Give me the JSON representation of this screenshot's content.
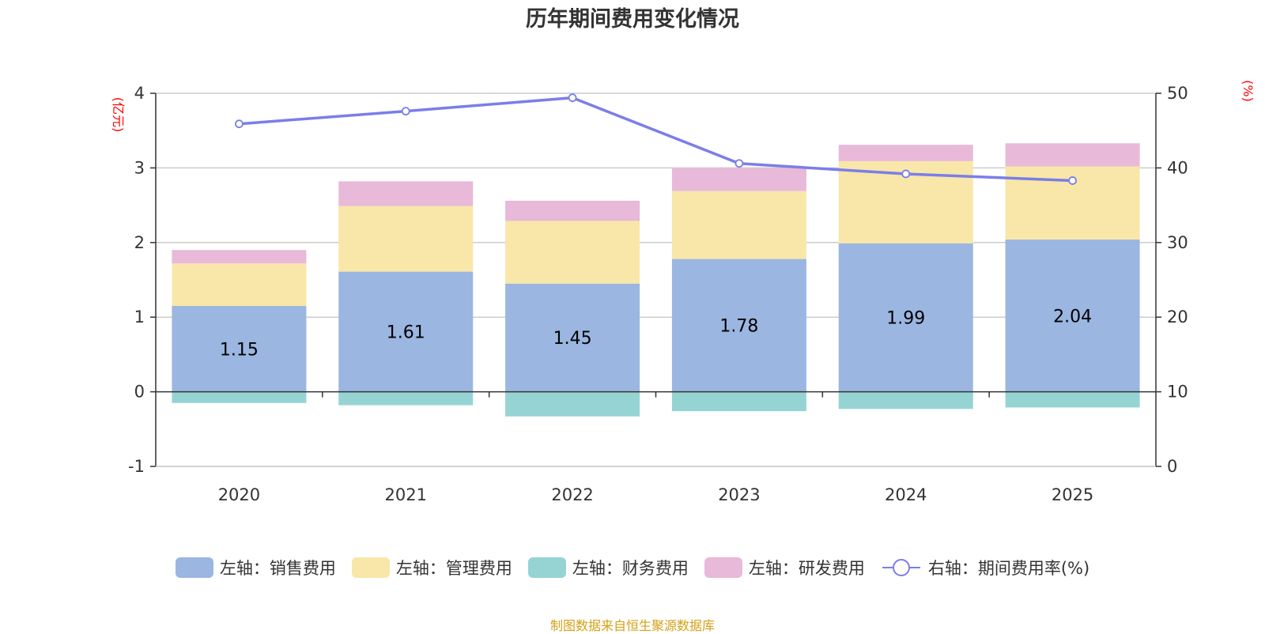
{
  "chart_data": {
    "type": "bar",
    "title": "历年期间费用变化情况",
    "categories": [
      "2020",
      "2021",
      "2022",
      "2023",
      "2024",
      "2025"
    ],
    "series": [
      {
        "name": "左轴：销售费用",
        "axis": "left",
        "stack": "positive",
        "color": "#9bb6e0",
        "values": [
          1.15,
          1.61,
          1.45,
          1.78,
          1.99,
          2.04
        ],
        "show_labels": true
      },
      {
        "name": "左轴：管理费用",
        "axis": "left",
        "stack": "positive",
        "color": "#f8e7a8",
        "values": [
          0.57,
          0.88,
          0.84,
          0.91,
          1.1,
          0.98
        ],
        "show_labels": false
      },
      {
        "name": "左轴：财务费用",
        "axis": "left",
        "stack": "negative",
        "color": "#96d4d4",
        "values": [
          -0.15,
          -0.18,
          -0.33,
          -0.26,
          -0.23,
          -0.21
        ],
        "show_labels": false
      },
      {
        "name": "左轴：研发费用",
        "axis": "left",
        "stack": "positive",
        "color": "#e8b9d9",
        "values": [
          0.18,
          0.33,
          0.27,
          0.31,
          0.22,
          0.31
        ],
        "show_labels": false
      },
      {
        "name": "右轴：期间费用率(%)",
        "axis": "right",
        "type": "line",
        "color": "#7b7ee8",
        "values": [
          45.9,
          47.6,
          49.4,
          40.6,
          39.2,
          38.3
        ]
      }
    ],
    "y_left": {
      "label": "(亿元)",
      "range": [
        -1,
        4
      ],
      "ticks": [
        "4",
        "3",
        "2",
        "1",
        "0",
        "-1"
      ],
      "tick_values": [
        4,
        3,
        2,
        1,
        0,
        -1
      ]
    },
    "y_right": {
      "label": "(%)",
      "range": [
        0,
        50
      ],
      "ticks": [
        "50",
        "40",
        "30",
        "20",
        "10",
        "0"
      ],
      "tick_values": [
        50,
        40,
        30,
        20,
        10,
        0
      ]
    },
    "grid": true,
    "legend_position": "bottom"
  },
  "source_note": "制图数据来自恒生聚源数据库"
}
